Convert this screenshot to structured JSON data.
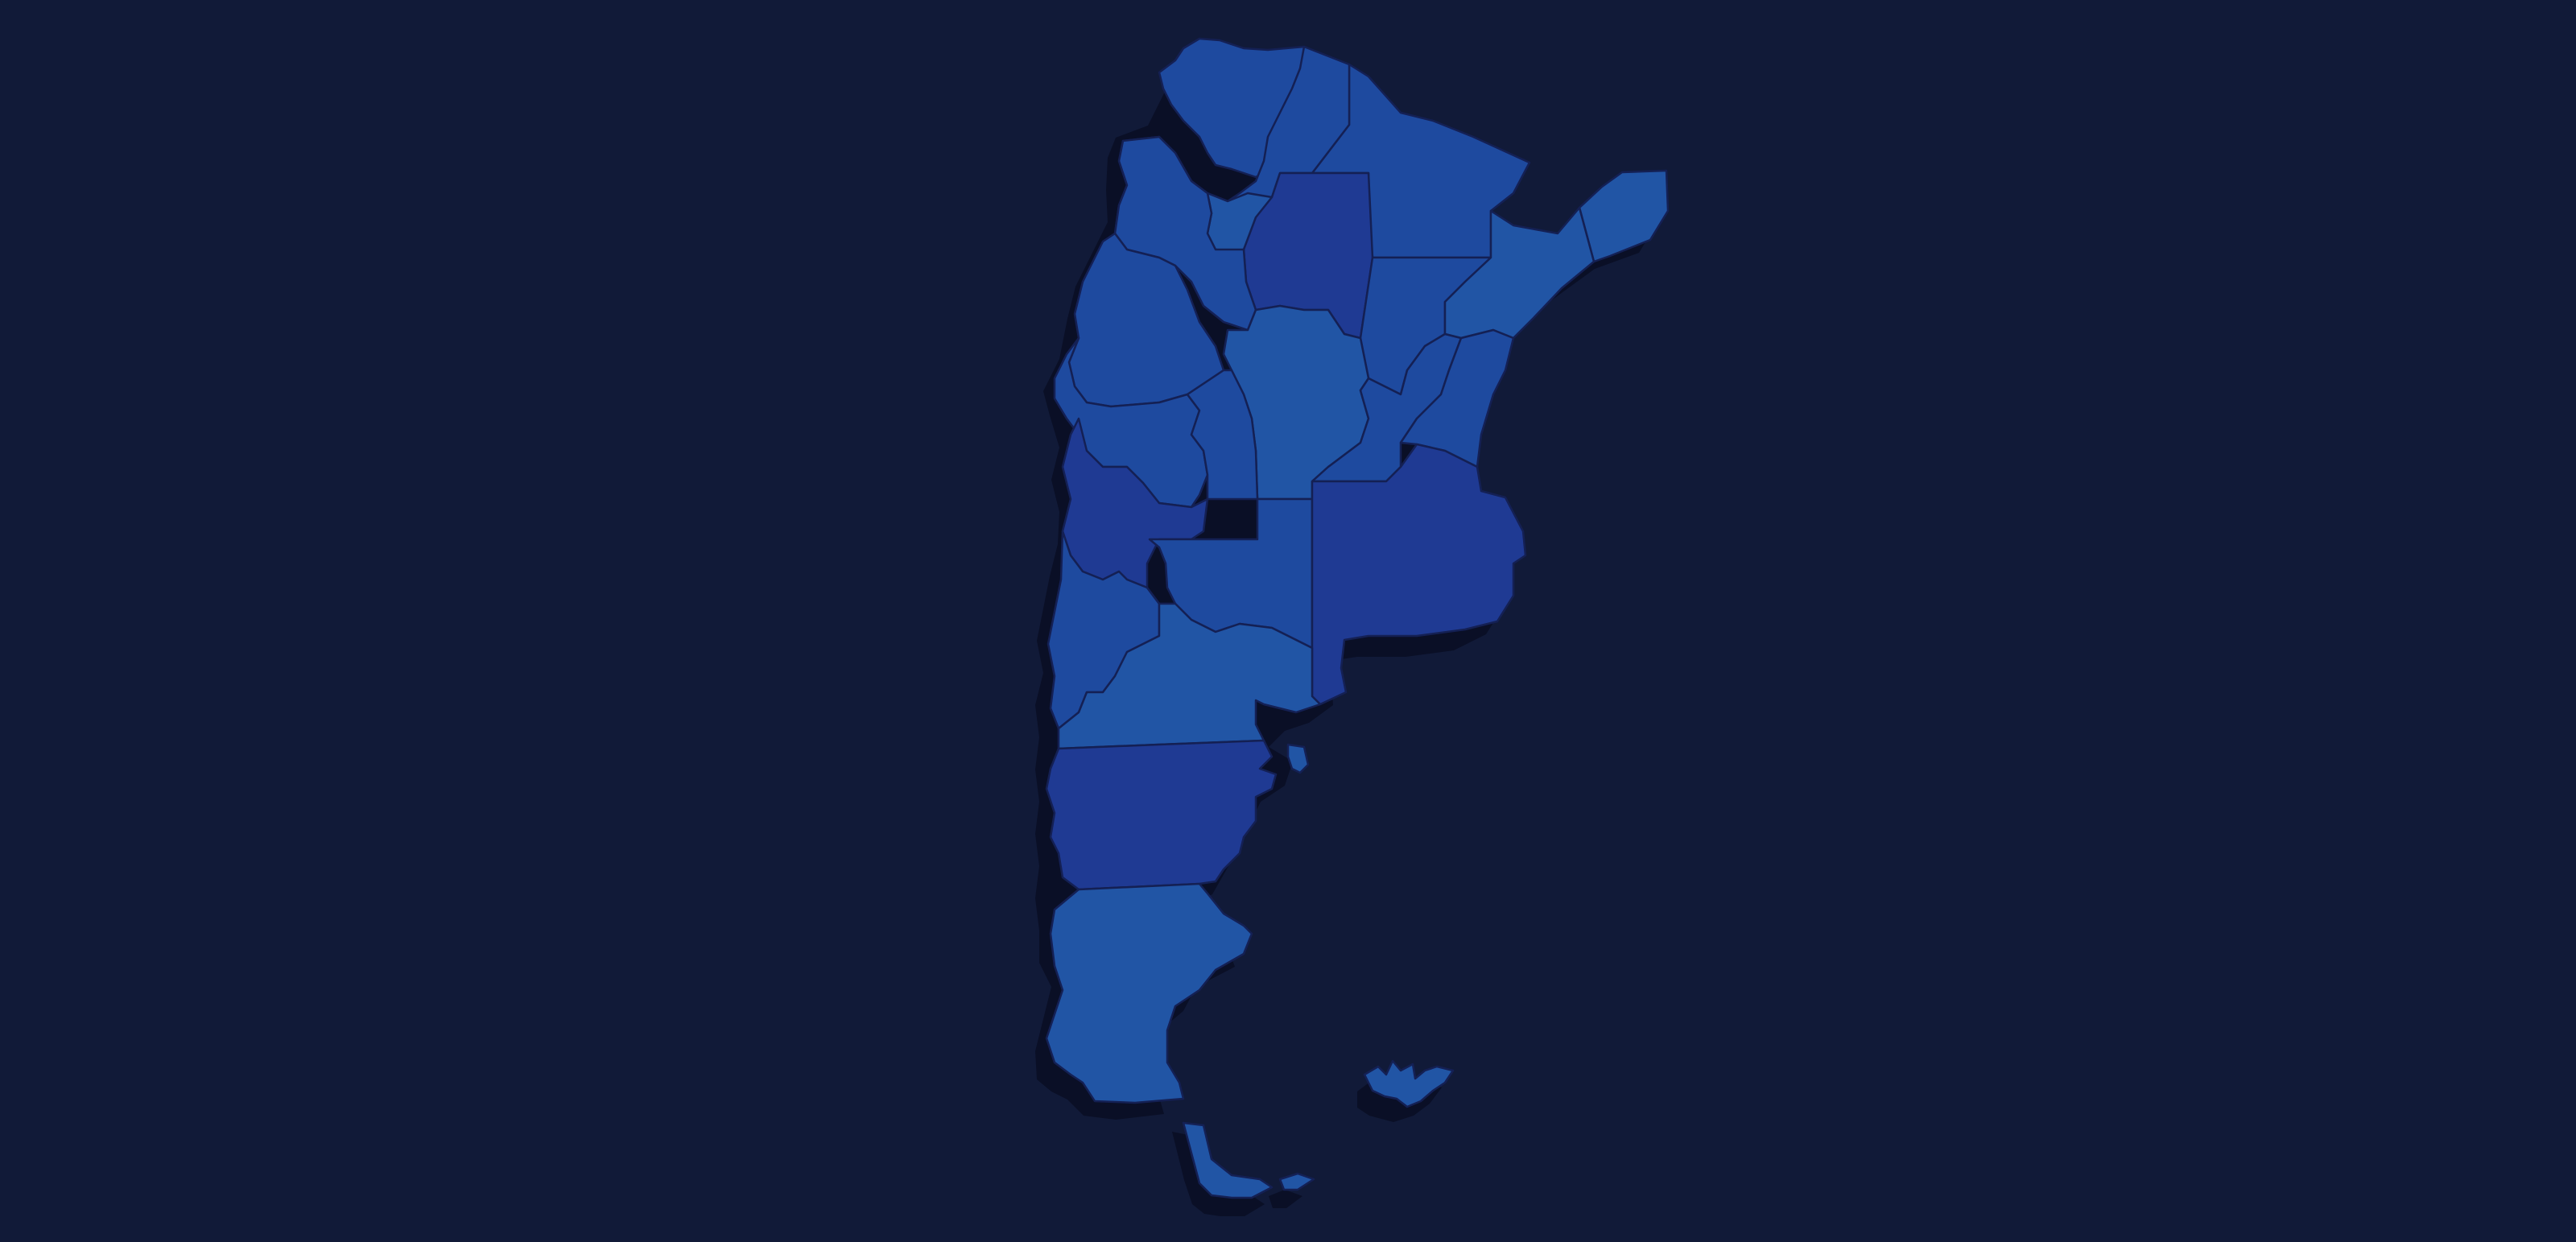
{
  "map": {
    "background_color": "#111a38",
    "shadow_color": "#0a0f26",
    "border_color": "#142054",
    "region_palette": {
      "dark": "#1f3a93",
      "mid": "#1e4a9f",
      "light": "#2155a5"
    },
    "provinces": [
      {
        "id": "jujuy",
        "shade": "mid"
      },
      {
        "id": "salta",
        "shade": "mid"
      },
      {
        "id": "formosa",
        "shade": "mid"
      },
      {
        "id": "misiones",
        "shade": "light"
      },
      {
        "id": "tucuman",
        "shade": "light"
      },
      {
        "id": "catamarca",
        "shade": "light"
      },
      {
        "id": "santiago-del-estero",
        "shade": "dark"
      },
      {
        "id": "chaco",
        "shade": "mid"
      },
      {
        "id": "corrientes",
        "shade": "light"
      },
      {
        "id": "la-rioja",
        "shade": "mid"
      },
      {
        "id": "san-juan",
        "shade": "mid"
      },
      {
        "id": "cordoba",
        "shade": "light"
      },
      {
        "id": "santa-fe",
        "shade": "mid"
      },
      {
        "id": "entre-rios",
        "shade": "mid"
      },
      {
        "id": "san-luis",
        "shade": "mid"
      },
      {
        "id": "mendoza",
        "shade": "dark"
      },
      {
        "id": "la-pampa",
        "shade": "mid"
      },
      {
        "id": "buenos-aires",
        "shade": "dark"
      },
      {
        "id": "neuquen",
        "shade": "mid"
      },
      {
        "id": "rio-negro",
        "shade": "light"
      },
      {
        "id": "chubut",
        "shade": "dark"
      },
      {
        "id": "santa-cruz",
        "shade": "light"
      },
      {
        "id": "tierra-del-fuego",
        "shade": "light"
      },
      {
        "id": "malvinas",
        "shade": "light"
      },
      {
        "id": "isla-de-los-estados",
        "shade": "light"
      },
      {
        "id": "peninsula-valdes",
        "shade": "light"
      }
    ]
  }
}
